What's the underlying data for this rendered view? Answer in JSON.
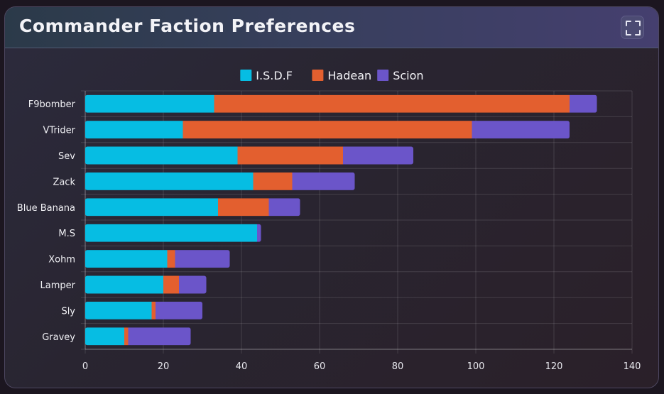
{
  "card": {
    "title": "Commander Faction Preferences",
    "expand_icon": "expand-fullscreen-icon"
  },
  "colors": {
    "isdf": "#06bde3",
    "hadean": "#e35f2f",
    "scion": "#6b55c9"
  },
  "chart_data": {
    "type": "bar",
    "orientation": "horizontal",
    "stacked": true,
    "categories": [
      "F9bomber",
      "VTrider",
      "Sev",
      "Zack",
      "Blue Banana",
      "M.S",
      "Xohm",
      "Lamper",
      "Sly",
      "Gravey"
    ],
    "series": [
      {
        "name": "I.S.D.F",
        "color": "#06bde3",
        "values": [
          33,
          25,
          39,
          43,
          34,
          44,
          21,
          20,
          17,
          10
        ]
      },
      {
        "name": "Hadean",
        "color": "#e35f2f",
        "values": [
          91,
          74,
          27,
          10,
          13,
          0,
          2,
          4,
          1,
          1
        ]
      },
      {
        "name": "Scion",
        "color": "#6b55c9",
        "values": [
          7,
          25,
          18,
          16,
          8,
          1,
          14,
          7,
          12,
          16
        ]
      }
    ],
    "xlim": [
      0,
      140
    ],
    "xticks": [
      0,
      20,
      40,
      60,
      80,
      100,
      120,
      140
    ],
    "grid": true,
    "legend": "top-center"
  }
}
